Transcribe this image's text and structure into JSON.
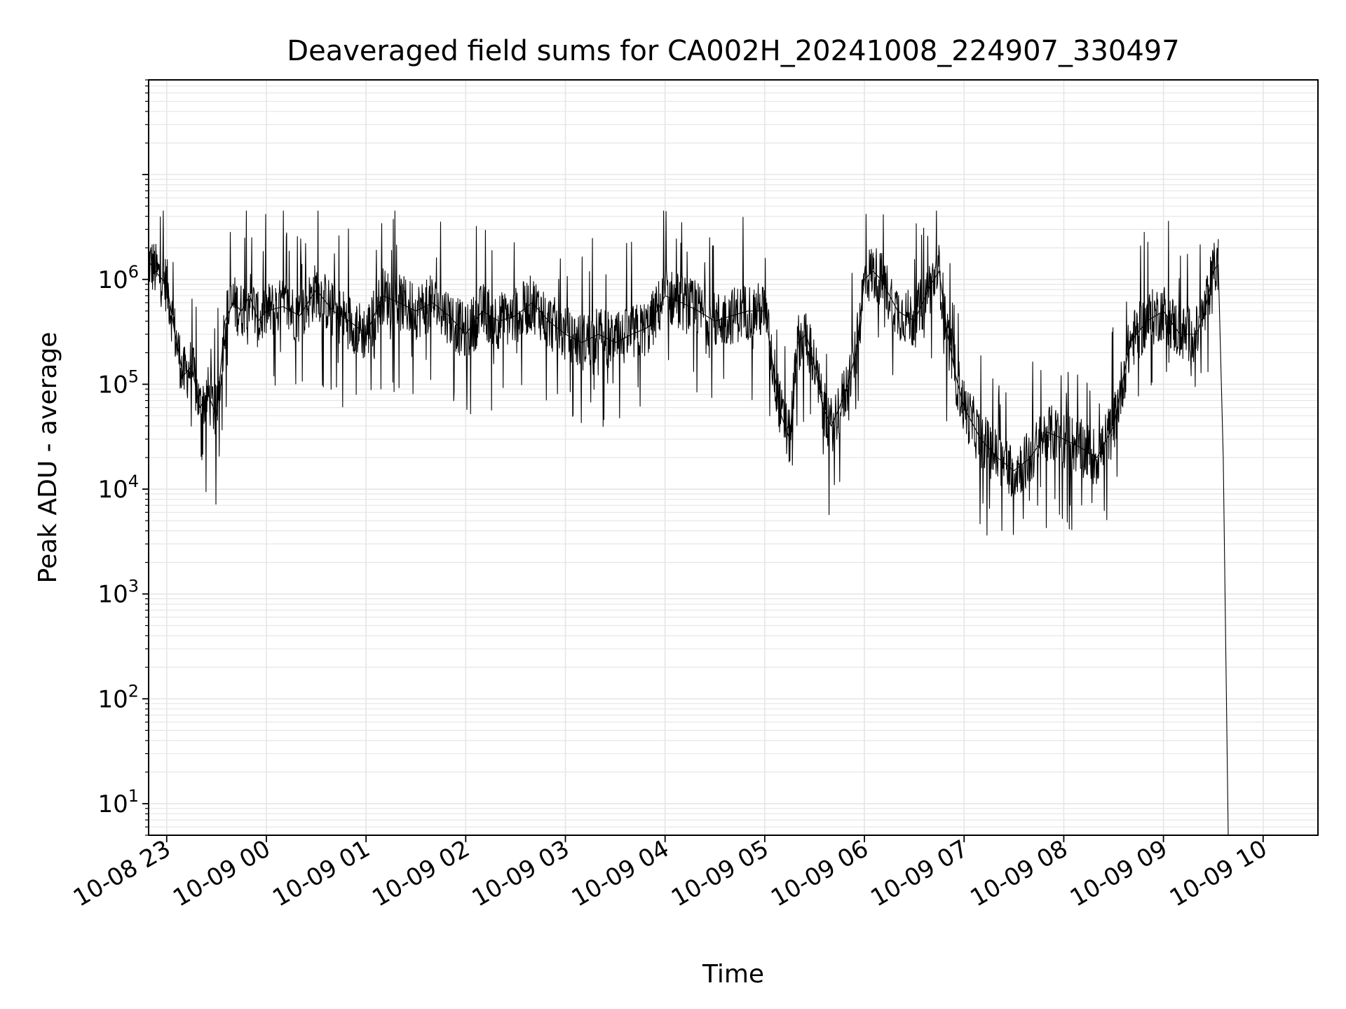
{
  "chart_data": {
    "type": "line",
    "title": "Deaveraged field sums for CA002H_20241008_224907_330497",
    "xlabel": "Time",
    "ylabel": "Peak ADU - average",
    "y_scale": "log",
    "ylim": [
      5,
      80000000
    ],
    "xlim": [
      "2024-10-08 22:49:07",
      "2024-10-09 10:33:00"
    ],
    "grid": true,
    "line_color": "#000000",
    "grid_color": "#e6e6e6",
    "x_ticks": [
      {
        "label": "10-08 23",
        "time": "2024-10-08 23:00"
      },
      {
        "label": "10-09 00",
        "time": "2024-10-09 00:00"
      },
      {
        "label": "10-09 01",
        "time": "2024-10-09 01:00"
      },
      {
        "label": "10-09 02",
        "time": "2024-10-09 02:00"
      },
      {
        "label": "10-09 03",
        "time": "2024-10-09 03:00"
      },
      {
        "label": "10-09 04",
        "time": "2024-10-09 04:00"
      },
      {
        "label": "10-09 05",
        "time": "2024-10-09 05:00"
      },
      {
        "label": "10-09 06",
        "time": "2024-10-09 06:00"
      },
      {
        "label": "10-09 07",
        "time": "2024-10-09 07:00"
      },
      {
        "label": "10-09 08",
        "time": "2024-10-09 08:00"
      },
      {
        "label": "10-09 09",
        "time": "2024-10-09 09:00"
      },
      {
        "label": "10-09 10",
        "time": "2024-10-09 10:00"
      }
    ],
    "y_ticks": [
      {
        "base": "10",
        "exp": "1",
        "value": 10
      },
      {
        "base": "10",
        "exp": "2",
        "value": 100
      },
      {
        "base": "10",
        "exp": "3",
        "value": 1000
      },
      {
        "base": "10",
        "exp": "4",
        "value": 10000
      },
      {
        "base": "10",
        "exp": "5",
        "value": 100000
      },
      {
        "base": "10",
        "exp": "6",
        "value": 1000000
      }
    ],
    "series": [
      {
        "x": [
          "2024-10-08 22:49",
          "2024-10-08 22:55",
          "2024-10-08 23:00",
          "2024-10-08 23:05",
          "2024-10-08 23:10",
          "2024-10-08 23:15",
          "2024-10-08 23:20",
          "2024-10-08 23:25",
          "2024-10-08 23:30",
          "2024-10-08 23:35",
          "2024-10-08 23:40",
          "2024-10-08 23:45",
          "2024-10-08 23:50",
          "2024-10-08 23:55",
          "2024-10-09 00:00",
          "2024-10-09 00:10",
          "2024-10-09 00:20",
          "2024-10-09 00:30",
          "2024-10-09 00:40",
          "2024-10-09 00:50",
          "2024-10-09 01:00",
          "2024-10-09 01:10",
          "2024-10-09 01:20",
          "2024-10-09 01:30",
          "2024-10-09 01:40",
          "2024-10-09 01:50",
          "2024-10-09 02:00",
          "2024-10-09 02:10",
          "2024-10-09 02:20",
          "2024-10-09 02:30",
          "2024-10-09 02:40",
          "2024-10-09 02:50",
          "2024-10-09 03:00",
          "2024-10-09 03:10",
          "2024-10-09 03:20",
          "2024-10-09 03:30",
          "2024-10-09 03:40",
          "2024-10-09 03:50",
          "2024-10-09 04:00",
          "2024-10-09 04:10",
          "2024-10-09 04:20",
          "2024-10-09 04:30",
          "2024-10-09 04:40",
          "2024-10-09 04:50",
          "2024-10-09 05:00",
          "2024-10-09 05:05",
          "2024-10-09 05:10",
          "2024-10-09 05:15",
          "2024-10-09 05:20",
          "2024-10-09 05:25",
          "2024-10-09 05:30",
          "2024-10-09 05:35",
          "2024-10-09 05:40",
          "2024-10-09 05:45",
          "2024-10-09 05:50",
          "2024-10-09 05:55",
          "2024-10-09 06:00",
          "2024-10-09 06:05",
          "2024-10-09 06:10",
          "2024-10-09 06:20",
          "2024-10-09 06:30",
          "2024-10-09 06:40",
          "2024-10-09 06:45",
          "2024-10-09 06:50",
          "2024-10-09 06:55",
          "2024-10-09 07:00",
          "2024-10-09 07:10",
          "2024-10-09 07:20",
          "2024-10-09 07:30",
          "2024-10-09 07:40",
          "2024-10-09 07:50",
          "2024-10-09 08:00",
          "2024-10-09 08:10",
          "2024-10-09 08:20",
          "2024-10-09 08:30",
          "2024-10-09 08:40",
          "2024-10-09 08:50",
          "2024-10-09 09:00",
          "2024-10-09 09:10",
          "2024-10-09 09:20",
          "2024-10-09 09:25",
          "2024-10-09 09:30",
          "2024-10-09 09:33",
          "2024-10-09 09:36",
          "2024-10-09 09:39"
        ],
        "y": [
          1500000,
          1100000,
          900000,
          300000,
          120000,
          150000,
          60000,
          80000,
          50000,
          400000,
          600000,
          500000,
          700000,
          400000,
          500000,
          550000,
          450000,
          800000,
          500000,
          400000,
          300000,
          700000,
          600000,
          500000,
          600000,
          450000,
          300000,
          500000,
          400000,
          450000,
          600000,
          400000,
          300000,
          250000,
          300000,
          250000,
          300000,
          350000,
          700000,
          600000,
          500000,
          400000,
          450000,
          500000,
          500000,
          150000,
          50000,
          30000,
          250000,
          300000,
          150000,
          60000,
          40000,
          60000,
          100000,
          200000,
          1000000,
          1200000,
          1000000,
          500000,
          400000,
          900000,
          1200000,
          300000,
          120000,
          60000,
          30000,
          20000,
          15000,
          20000,
          35000,
          30000,
          25000,
          20000,
          40000,
          250000,
          400000,
          500000,
          300000,
          300000,
          500000,
          1200000,
          1400000,
          20000,
          5
        ]
      }
    ]
  }
}
